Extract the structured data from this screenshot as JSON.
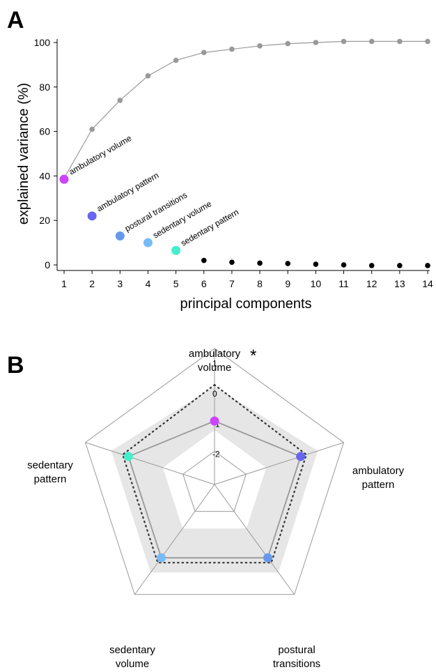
{
  "chart_data": [
    {
      "panel": "A",
      "type": "scatter",
      "xlabel": "principal components",
      "ylabel": "explained variance (%)",
      "xlim": [
        1,
        14
      ],
      "ylim": [
        0,
        100
      ],
      "x_ticks": [
        "1",
        "2",
        "3",
        "4",
        "5",
        "6",
        "7",
        "8",
        "9",
        "10",
        "11",
        "12",
        "13",
        "14"
      ],
      "y_ticks": [
        "0",
        "20",
        "40",
        "60",
        "80",
        "100"
      ],
      "series": [
        {
          "style": "line-with-markers",
          "color": "#999999",
          "x": [
            1,
            2,
            3,
            4,
            5,
            6,
            7,
            8,
            9,
            10,
            11,
            12,
            13,
            14
          ],
          "values": [
            39,
            61,
            74,
            85,
            92,
            95.5,
            97,
            98.5,
            99.5,
            100,
            100.5,
            100.5,
            100.5,
            100.5
          ]
        },
        {
          "style": "markers",
          "color": "#000000",
          "x": [
            6,
            7,
            8,
            9,
            10,
            11,
            12,
            13,
            14
          ],
          "values": [
            2,
            1.2,
            0.8,
            0.6,
            0.3,
            0,
            -0.3,
            -0.3,
            -0.3
          ]
        }
      ],
      "labeled_points": [
        {
          "x": 1,
          "y": 38.5,
          "label": "ambulatory volume",
          "color": "#cc44ff"
        },
        {
          "x": 2,
          "y": 22,
          "label": "ambulatory pattern",
          "color": "#6666ee"
        },
        {
          "x": 3,
          "y": 13,
          "label": "postural transitions",
          "color": "#6699ee"
        },
        {
          "x": 4,
          "y": 10,
          "label": "sedentary volume",
          "color": "#77bbf5"
        },
        {
          "x": 5,
          "y": 6.5,
          "label": "sedentary pattern",
          "color": "#44eecc"
        }
      ]
    },
    {
      "panel": "B",
      "type": "radar",
      "axes": [
        {
          "label_lines": [
            "ambulatory",
            "volume"
          ],
          "marker": "*"
        },
        {
          "label_lines": [
            "ambulatory",
            "pattern"
          ]
        },
        {
          "label_lines": [
            "postural",
            "transitions"
          ]
        },
        {
          "label_lines": [
            "sedentary",
            "volume"
          ]
        },
        {
          "label_lines": [
            "sedentary",
            "pattern"
          ]
        }
      ],
      "scale_ticks": [
        "1",
        "0",
        "-1",
        "-2"
      ],
      "range": [
        -3,
        1.5
      ],
      "series": [
        {
          "style": "solid",
          "color": "#999999",
          "values": [
            -0.9,
            0,
            0,
            0,
            0
          ]
        },
        {
          "style": "dotted",
          "color": "#333333",
          "values": [
            0.3,
            0.2,
            0.2,
            0.2,
            0.2
          ]
        }
      ],
      "band": {
        "color": "#e6e6e6",
        "inner": [
          -1.2,
          -1.2,
          -1.2,
          -1.2,
          -1.2
        ],
        "outer": [
          0.25,
          0.6,
          0.6,
          0.6,
          0.6
        ]
      },
      "point_colors": [
        "#cc44ff",
        "#6666ee",
        "#6699ee",
        "#77bbf5",
        "#44eecc"
      ]
    }
  ],
  "labels": {
    "panel_a": "A",
    "panel_b": "B"
  }
}
